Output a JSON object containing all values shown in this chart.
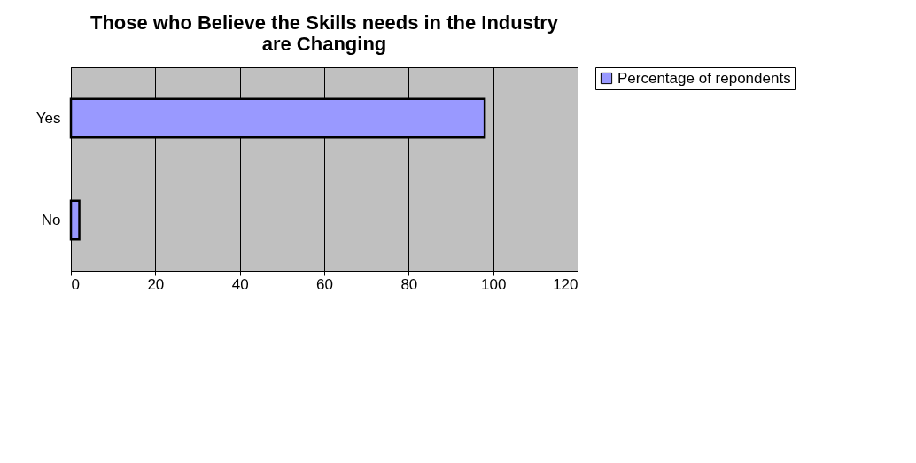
{
  "chart_data": {
    "type": "bar",
    "orientation": "horizontal",
    "title": "Those who Believe the Skills needs in the Industry are Changing",
    "categories": [
      "Yes",
      "No"
    ],
    "series": [
      {
        "name": "Percentage of repondents",
        "color": "#9999ff",
        "values": [
          98,
          2
        ]
      }
    ],
    "xlim": [
      0,
      120
    ],
    "xticks": [
      0,
      20,
      40,
      60,
      80,
      100,
      120
    ],
    "grid": "x",
    "legend": "right"
  }
}
